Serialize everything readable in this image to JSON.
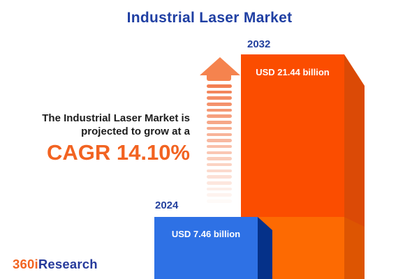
{
  "title": "Industrial Laser Market",
  "headline": {
    "line1": "The Industrial Laser Market is",
    "line2": "projected to grow at a",
    "cagr": "CAGR 14.10%"
  },
  "logo": {
    "prefix": "360i",
    "suffix": "Research"
  },
  "chart_data": {
    "type": "bar",
    "orientation": "vertical",
    "title": "Industrial Laser Market",
    "categories": [
      "2024",
      "2032"
    ],
    "values": [
      7.46,
      21.44
    ],
    "unit": "USD billion",
    "value_labels": [
      "USD 7.46 billion",
      "USD 21.44 billion"
    ],
    "cagr_percent": 14.1,
    "annotation": "The Industrial Laser Market is projected to grow at a CAGR 14.10%",
    "grid": false,
    "legend": "none",
    "axis_labels": "none",
    "notes": "3D-style bars; 2032 bar shows the 2024-equivalent portion as a lighter orange band; fading dashed arrow indicates growth",
    "colors": {
      "bar_2024_face": "#2E71E5",
      "bar_2024_side": "#053189",
      "bar_2032_face": "#FB4D00",
      "bar_2032_side": "#DB4A06",
      "overlap_face": "#FD6A02",
      "overlap_side": "#DD5502",
      "title_blue": "#1F3FA3",
      "year_label_blue": "#24419E",
      "cagr_orange": "#F26321",
      "arrow_orange": "#F5834E",
      "logo_orange": "#F26522",
      "logo_blue": "#263A9B",
      "text_dark": "#1C1C1C",
      "background": "#FFFFFF"
    }
  }
}
